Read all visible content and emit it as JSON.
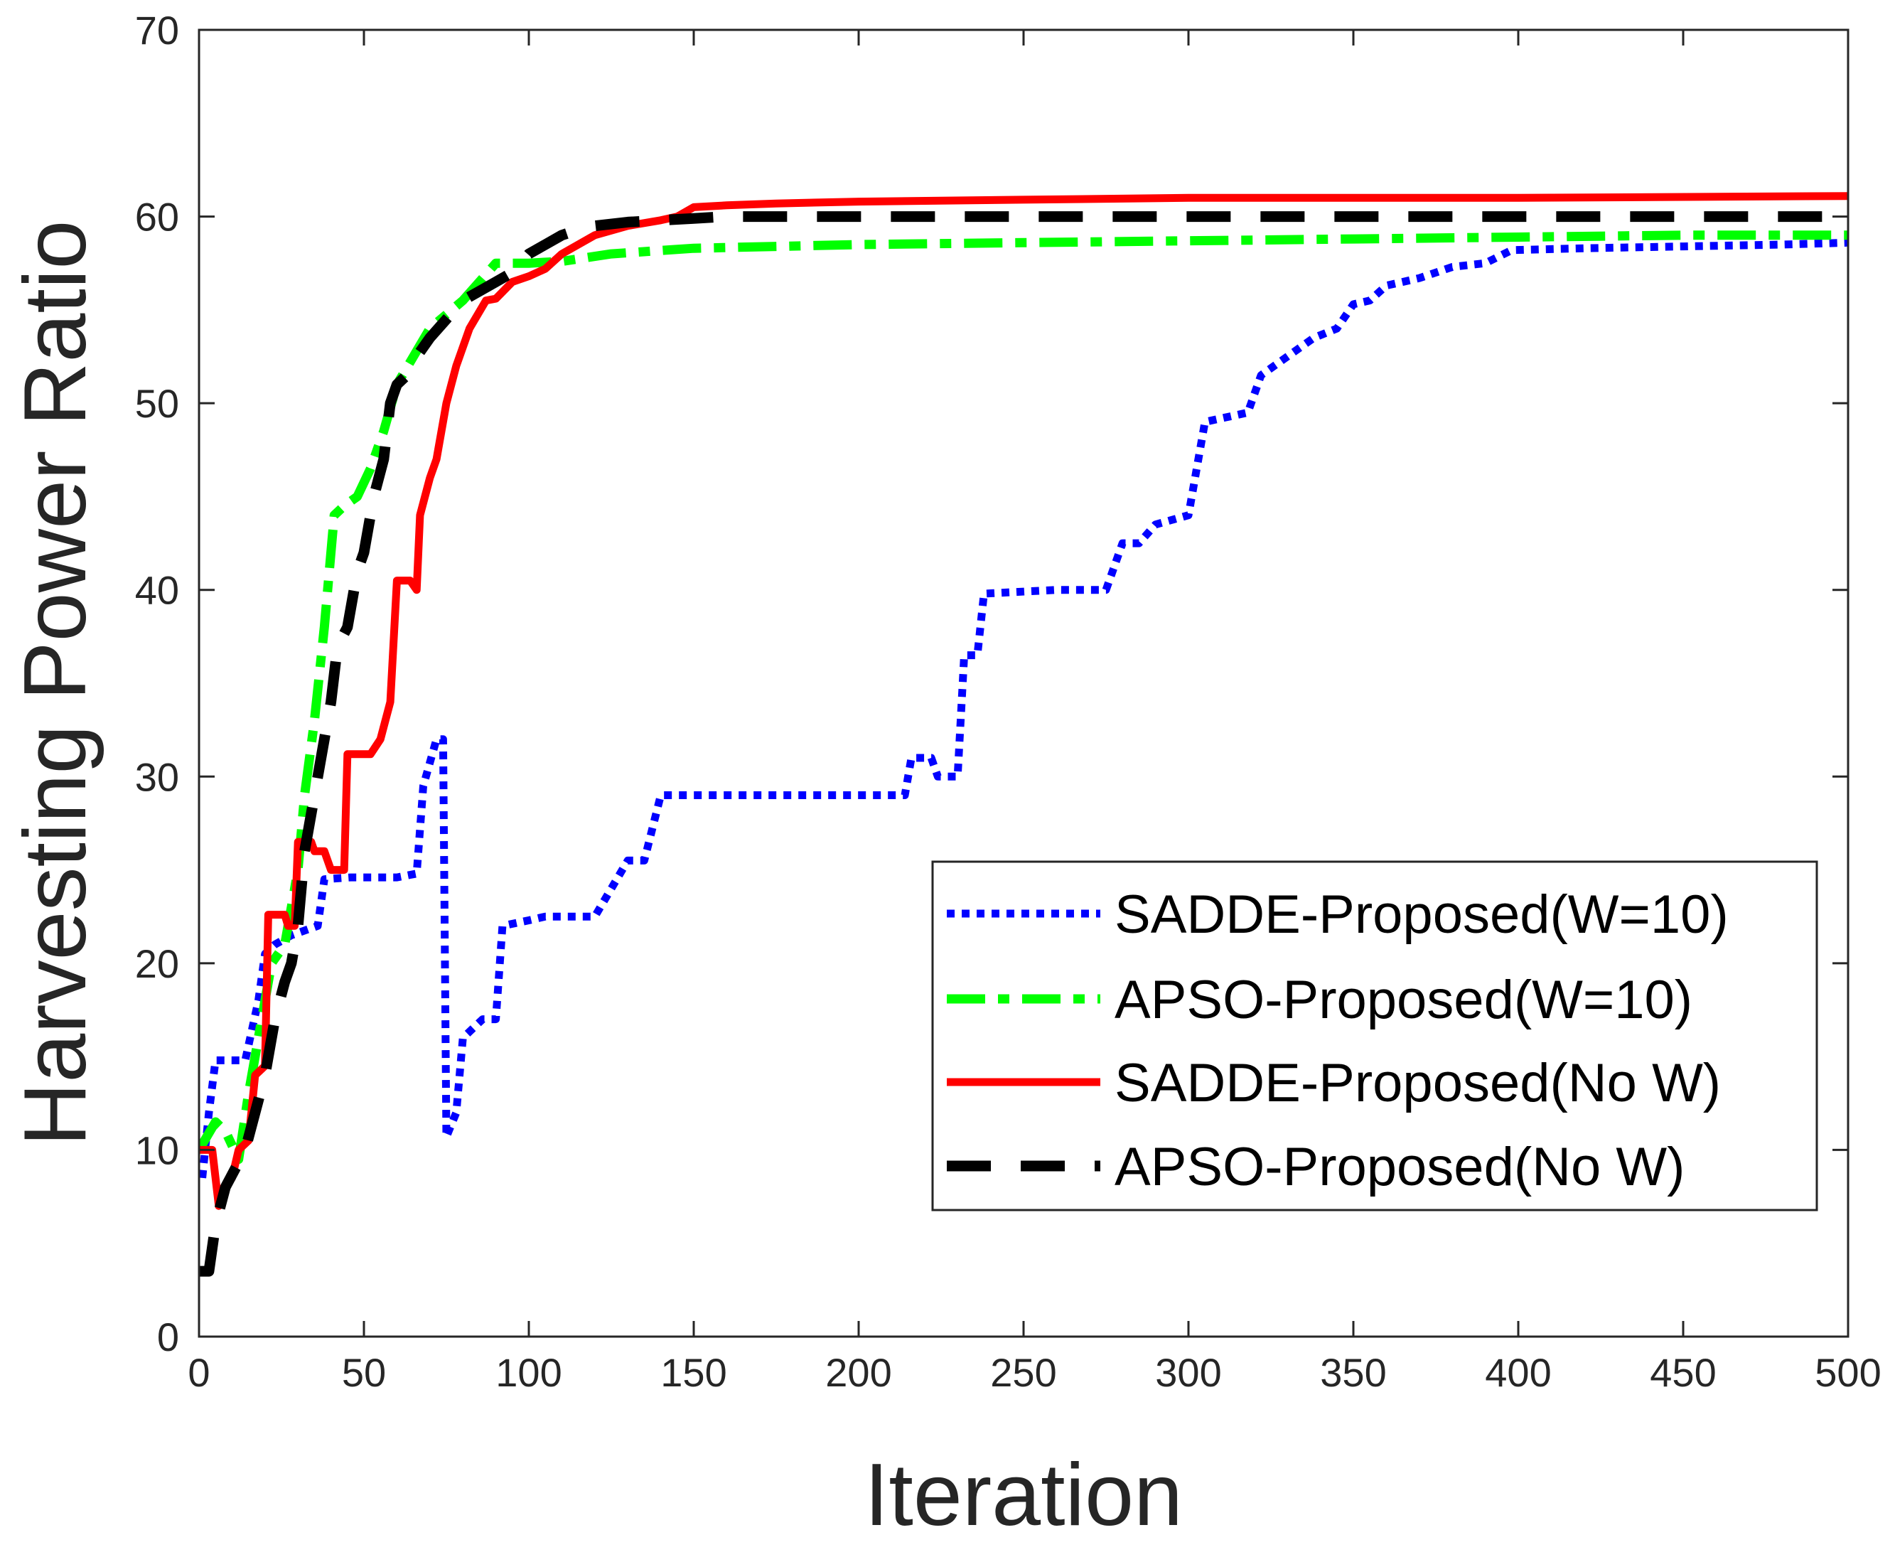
{
  "chart_data": {
    "type": "line",
    "title": "",
    "xlabel": "Iteration",
    "ylabel": "Harvesting Power Ratio",
    "xlim": [
      0,
      500
    ],
    "ylim": [
      0,
      70
    ],
    "xticks": [
      0,
      50,
      100,
      150,
      200,
      250,
      300,
      350,
      400,
      450,
      500
    ],
    "yticks": [
      0,
      10,
      20,
      30,
      40,
      50,
      60,
      70
    ],
    "grid": false,
    "legend_position": "bottom-right",
    "series": [
      {
        "name": "SADDE-Proposed(W=10)",
        "color": "#0000ff",
        "style": "dotted",
        "points": [
          [
            1,
            8.5
          ],
          [
            3,
            12
          ],
          [
            5,
            14.8
          ],
          [
            10,
            14.8
          ],
          [
            14,
            14.8
          ],
          [
            18,
            18
          ],
          [
            20,
            20.5
          ],
          [
            23,
            21
          ],
          [
            28,
            21.5
          ],
          [
            36,
            22
          ],
          [
            38,
            24.5
          ],
          [
            46,
            24.6
          ],
          [
            60,
            24.6
          ],
          [
            66,
            24.8
          ],
          [
            68,
            29.5
          ],
          [
            72,
            32
          ],
          [
            74,
            32
          ],
          [
            75,
            10.7
          ],
          [
            78,
            12
          ],
          [
            80,
            16
          ],
          [
            86,
            17
          ],
          [
            90,
            17
          ],
          [
            92,
            22
          ],
          [
            100,
            22.3
          ],
          [
            105,
            22.5
          ],
          [
            120,
            22.5
          ],
          [
            130,
            25.5
          ],
          [
            135,
            25.5
          ],
          [
            140,
            29
          ],
          [
            160,
            29
          ],
          [
            180,
            29
          ],
          [
            200,
            29
          ],
          [
            214,
            29
          ],
          [
            216,
            31
          ],
          [
            222,
            31
          ],
          [
            224,
            30
          ],
          [
            230,
            30
          ],
          [
            232,
            36.5
          ],
          [
            236,
            36.5
          ],
          [
            238,
            39.8
          ],
          [
            260,
            40
          ],
          [
            275,
            40
          ],
          [
            280,
            42.5
          ],
          [
            285,
            42.5
          ],
          [
            290,
            43.5
          ],
          [
            300,
            44
          ],
          [
            305,
            49
          ],
          [
            318,
            49.5
          ],
          [
            322,
            51.5
          ],
          [
            330,
            52.5
          ],
          [
            338,
            53.5
          ],
          [
            345,
            54
          ],
          [
            350,
            55.3
          ],
          [
            355,
            55.5
          ],
          [
            360,
            56.3
          ],
          [
            365,
            56.5
          ],
          [
            370,
            56.7
          ],
          [
            380,
            57.3
          ],
          [
            390,
            57.5
          ],
          [
            398,
            58.2
          ],
          [
            420,
            58.3
          ],
          [
            450,
            58.4
          ],
          [
            480,
            58.5
          ],
          [
            500,
            58.6
          ]
        ]
      },
      {
        "name": "APSO-Proposed(W=10)",
        "color": "#00ff00",
        "style": "dashdot",
        "points": [
          [
            0,
            10
          ],
          [
            5,
            11.5
          ],
          [
            8,
            11
          ],
          [
            12,
            9.5
          ],
          [
            15,
            13
          ],
          [
            20,
            18
          ],
          [
            22,
            20
          ],
          [
            26,
            21
          ],
          [
            30,
            25
          ],
          [
            32,
            29
          ],
          [
            35,
            33
          ],
          [
            38,
            38
          ],
          [
            41,
            44
          ],
          [
            44,
            44.5
          ],
          [
            48,
            45
          ],
          [
            52,
            46.5
          ],
          [
            56,
            48.5
          ],
          [
            60,
            51
          ],
          [
            65,
            52.5
          ],
          [
            70,
            54
          ],
          [
            80,
            55.5
          ],
          [
            90,
            57.5
          ],
          [
            100,
            57.5
          ],
          [
            110,
            57.6
          ],
          [
            125,
            58
          ],
          [
            150,
            58.3
          ],
          [
            200,
            58.5
          ],
          [
            250,
            58.6
          ],
          [
            300,
            58.7
          ],
          [
            350,
            58.8
          ],
          [
            400,
            58.9
          ],
          [
            450,
            59
          ],
          [
            500,
            59
          ]
        ]
      },
      {
        "name": "SADDE-Proposed(No W)",
        "color": "#ff0000",
        "style": "solid",
        "points": [
          [
            0,
            10
          ],
          [
            4,
            10
          ],
          [
            6,
            7
          ],
          [
            8,
            8
          ],
          [
            10,
            8.5
          ],
          [
            12,
            10
          ],
          [
            15,
            10.5
          ],
          [
            17,
            14
          ],
          [
            20,
            14.5
          ],
          [
            21,
            22.6
          ],
          [
            26,
            22.6
          ],
          [
            27,
            22
          ],
          [
            29,
            22
          ],
          [
            30,
            26.5
          ],
          [
            34,
            26.5
          ],
          [
            35,
            26
          ],
          [
            38,
            26
          ],
          [
            40,
            25
          ],
          [
            44,
            25
          ],
          [
            45,
            31.2
          ],
          [
            52,
            31.2
          ],
          [
            55,
            32
          ],
          [
            58,
            34
          ],
          [
            60,
            40.5
          ],
          [
            64,
            40.5
          ],
          [
            66,
            40
          ],
          [
            67,
            44
          ],
          [
            70,
            46
          ],
          [
            72,
            47
          ],
          [
            75,
            50
          ],
          [
            78,
            52
          ],
          [
            82,
            54
          ],
          [
            87,
            55.5
          ],
          [
            90,
            55.6
          ],
          [
            95,
            56.5
          ],
          [
            100,
            56.8
          ],
          [
            105,
            57.2
          ],
          [
            110,
            58
          ],
          [
            120,
            59
          ],
          [
            130,
            59.5
          ],
          [
            140,
            59.8
          ],
          [
            145,
            60
          ],
          [
            150,
            60.5
          ],
          [
            160,
            60.6
          ],
          [
            175,
            60.7
          ],
          [
            200,
            60.8
          ],
          [
            250,
            60.9
          ],
          [
            300,
            61
          ],
          [
            400,
            61
          ],
          [
            500,
            61.1
          ]
        ]
      },
      {
        "name": "APSO-Proposed(No W)",
        "color": "#000000",
        "style": "dashed",
        "points": [
          [
            0,
            3.5
          ],
          [
            3,
            3.5
          ],
          [
            5,
            6
          ],
          [
            8,
            8
          ],
          [
            11,
            9
          ],
          [
            14,
            10
          ],
          [
            17,
            12
          ],
          [
            20,
            14
          ],
          [
            23,
            17
          ],
          [
            26,
            19
          ],
          [
            28,
            20
          ],
          [
            30,
            22
          ],
          [
            32,
            26
          ],
          [
            34,
            28
          ],
          [
            38,
            32
          ],
          [
            40,
            34
          ],
          [
            42,
            37
          ],
          [
            45,
            38
          ],
          [
            48,
            41
          ],
          [
            50,
            42
          ],
          [
            53,
            45
          ],
          [
            56,
            47
          ],
          [
            58,
            50
          ],
          [
            60,
            51
          ],
          [
            63,
            51.5
          ],
          [
            66,
            52.5
          ],
          [
            70,
            53.5
          ],
          [
            75,
            54.5
          ],
          [
            80,
            55.5
          ],
          [
            85,
            56
          ],
          [
            90,
            56.5
          ],
          [
            95,
            57
          ],
          [
            100,
            58
          ],
          [
            105,
            58.5
          ],
          [
            110,
            59
          ],
          [
            115,
            59.3
          ],
          [
            120,
            59.5
          ],
          [
            130,
            59.7
          ],
          [
            140,
            59.8
          ],
          [
            150,
            59.9
          ],
          [
            160,
            60
          ],
          [
            200,
            60
          ],
          [
            300,
            60
          ],
          [
            400,
            60
          ],
          [
            500,
            60
          ]
        ]
      }
    ]
  }
}
